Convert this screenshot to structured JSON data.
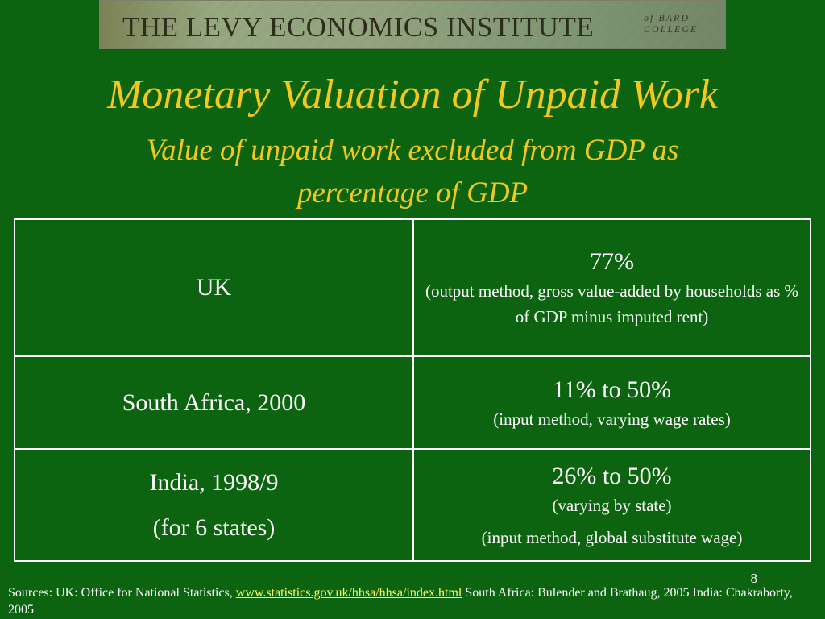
{
  "header": {
    "banner_title": "THE LEVY ECONOMICS INSTITUTE",
    "banner_sub": "of BARD\nCOLLEGE"
  },
  "slide": {
    "title": "Monetary Valuation of Unpaid Work",
    "subtitle": "Value of unpaid work excluded from GDP as percentage of GDP",
    "page_number": "8"
  },
  "table": {
    "rows": [
      {
        "country": "UK",
        "country_note": "",
        "value": "77%",
        "notes": [
          "(output method, gross value-added by households as % of GDP minus imputed rent)"
        ]
      },
      {
        "country": "South Africa, 2000",
        "country_note": "",
        "value": "11% to 50%",
        "notes": [
          "(input method, varying wage rates)"
        ]
      },
      {
        "country": "India, 1998/9",
        "country_note": "(for 6 states)",
        "value": "26% to 50%",
        "notes": [
          "(varying by state)",
          "(input method, global substitute wage)"
        ]
      }
    ]
  },
  "footer": {
    "sources_prefix": "Sources: UK: Office for National Statistics, ",
    "sources_link": "www.statistics.gov.uk/hhsa/hhsa/index.html",
    "sources_suffix": "  South Africa: Bulender and Brathaug, 2005 India: Chakraborty, 2005"
  },
  "colors": {
    "background": "#0c6410",
    "title": "#f2c81e",
    "text": "#ffffff",
    "link": "#ffff66"
  }
}
